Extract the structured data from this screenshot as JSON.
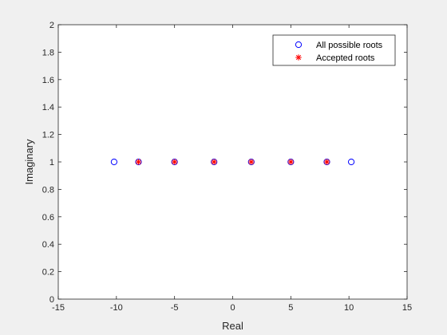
{
  "chart_data": {
    "type": "scatter",
    "title": "",
    "xlabel": "Real",
    "ylabel": "Imaginary",
    "xlim": [
      -15,
      15
    ],
    "ylim": [
      0,
      2
    ],
    "xticks": [
      -15,
      -10,
      -5,
      0,
      5,
      10,
      15
    ],
    "yticks": [
      0,
      0.2,
      0.4,
      0.6,
      0.8,
      1,
      1.2,
      1.4,
      1.6,
      1.8,
      2
    ],
    "xtick_labels": [
      "-15",
      "-10",
      "-5",
      "0",
      "5",
      "10",
      "15"
    ],
    "ytick_labels": [
      "0",
      "0.2",
      "0.4",
      "0.6",
      "0.8",
      "1",
      "1.2",
      "1.4",
      "1.6",
      "1.8",
      "2"
    ],
    "grid": false,
    "legend_position": "top-right",
    "series": [
      {
        "name": "All possible roots",
        "marker": "circle",
        "color": "#0000ff",
        "x": [
          -10.2,
          -8.1,
          -5.0,
          -1.6,
          1.6,
          5.0,
          8.1,
          10.2
        ],
        "y": [
          1,
          1,
          1,
          1,
          1,
          1,
          1,
          1
        ]
      },
      {
        "name": "Accepted roots",
        "marker": "asterisk",
        "color": "#ff0000",
        "x": [
          -8.1,
          -5.0,
          -1.6,
          1.6,
          5.0,
          8.1
        ],
        "y": [
          1,
          1,
          1,
          1,
          1,
          1
        ]
      }
    ]
  }
}
